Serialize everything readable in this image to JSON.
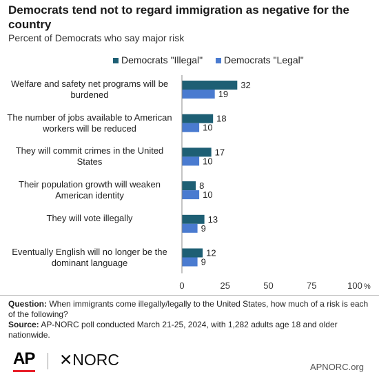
{
  "title": "Democrats tend not to regard immigration as negative for the country",
  "subtitle": "Percent of Democrats who say major risk",
  "chart_data": {
    "type": "bar",
    "orientation": "horizontal",
    "categories": [
      "Welfare and safety net programs will be burdened",
      "The number of jobs available to American workers will be reduced",
      "They will commit crimes in the United States",
      "Their population growth will weaken American identity",
      "They will vote illegally",
      "Eventually English will no longer be the dominant language"
    ],
    "series": [
      {
        "name": "Democrats \"Illegal\"",
        "color": "#1e5f74",
        "values": [
          32,
          18,
          17,
          8,
          13,
          12
        ]
      },
      {
        "name": "Democrats \"Legal\"",
        "color": "#4a7bd0",
        "values": [
          19,
          10,
          10,
          10,
          9,
          9
        ]
      }
    ],
    "xlim": [
      0,
      100
    ],
    "xticks": [
      "0",
      "25",
      "50",
      "75",
      "100"
    ],
    "axis_unit": "%",
    "legend_position": "top-right",
    "grid": false,
    "data_labels": true
  },
  "notes": {
    "question_label": "Question:",
    "question_text": "When immigrants come illegally/legally to the United States, how much of a risk is each of the following?",
    "source_label": "Source:",
    "source_text": "AP-NORC poll conducted March 21-25, 2024, with 1,282 adults age 18 and older nationwide."
  },
  "branding": {
    "ap": "AP",
    "norc": "NORC",
    "norc_mark": "✕",
    "site": "APNORC.org",
    "ap_accent": "#e8202a"
  }
}
